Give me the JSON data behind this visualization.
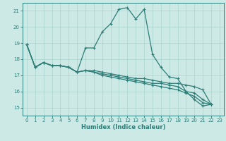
{
  "xlabel": "Humidex (Indice chaleur)",
  "xlim": [
    -0.5,
    23.5
  ],
  "ylim": [
    14.5,
    21.5
  ],
  "yticks": [
    15,
    16,
    17,
    18,
    19,
    20,
    21
  ],
  "xticks": [
    0,
    1,
    2,
    3,
    4,
    5,
    6,
    7,
    8,
    9,
    10,
    11,
    12,
    13,
    14,
    15,
    16,
    17,
    18,
    19,
    20,
    21,
    22,
    23
  ],
  "bg_color": "#cce9e5",
  "grid_color": "#aad4cf",
  "line_color": "#2d7d78",
  "line1": [
    18.9,
    17.5,
    17.8,
    17.6,
    17.6,
    17.5,
    17.2,
    18.7,
    18.7,
    19.7,
    20.2,
    21.1,
    21.2,
    20.5,
    21.1,
    18.3,
    17.5,
    16.9,
    16.8,
    16.0,
    15.5,
    15.1,
    15.2
  ],
  "line2": [
    18.9,
    17.5,
    17.8,
    17.6,
    17.6,
    17.5,
    17.2,
    17.3,
    17.3,
    17.2,
    17.1,
    17.0,
    16.9,
    16.8,
    16.8,
    16.7,
    16.6,
    16.5,
    16.5,
    16.4,
    16.3,
    16.1,
    15.2
  ],
  "line3": [
    18.9,
    17.5,
    17.8,
    17.6,
    17.6,
    17.5,
    17.2,
    17.3,
    17.2,
    17.1,
    17.0,
    16.9,
    16.8,
    16.7,
    16.6,
    16.5,
    16.5,
    16.4,
    16.3,
    16.0,
    15.9,
    15.5,
    15.2
  ],
  "line4": [
    18.9,
    17.5,
    17.8,
    17.6,
    17.6,
    17.5,
    17.2,
    17.3,
    17.2,
    17.0,
    16.9,
    16.8,
    16.7,
    16.6,
    16.5,
    16.4,
    16.3,
    16.2,
    16.1,
    15.9,
    15.7,
    15.3,
    15.2
  ]
}
